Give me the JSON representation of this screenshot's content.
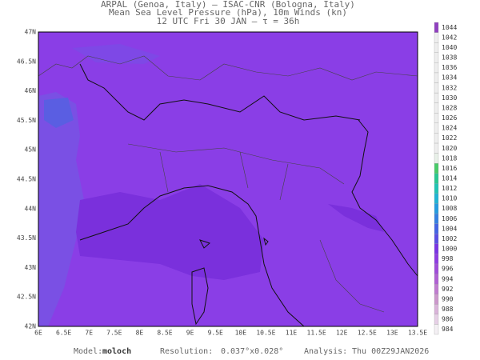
{
  "header": {
    "lines": [
      "ARPAL (Genoa, Italy)  –  ISAC-CNR (Bologna, Italy)",
      "Mean Sea Level Pressure (hPa), 10m Winds (kn)",
      "12 UTC Fri 30 JAN  –  τ = 36h"
    ]
  },
  "map": {
    "lon_labels": [
      "6E",
      "6.5E",
      "7E",
      "7.5E",
      "8E",
      "8.5E",
      "9E",
      "9.5E",
      "10E",
      "10.5E",
      "11E",
      "11.5E",
      "12E",
      "12.5E",
      "13E",
      "13.5E"
    ],
    "lat_labels": [
      "47N",
      "46.5N",
      "46N",
      "45.5N",
      "45N",
      "44.5N",
      "44N",
      "43.5N",
      "43N",
      "42.5N",
      "42N"
    ]
  },
  "colorbar": {
    "levels": [
      {
        "value": 984,
        "color": "#f4f0f4"
      },
      {
        "value": 986,
        "color": "#e6d0e6"
      },
      {
        "value": 988,
        "color": "#dab4da"
      },
      {
        "value": 990,
        "color": "#cc98cc"
      },
      {
        "value": 992,
        "color": "#c07cd0"
      },
      {
        "value": 994,
        "color": "#b060d4"
      },
      {
        "value": 996,
        "color": "#a04cda"
      },
      {
        "value": 998,
        "color": "#8e3ce2"
      },
      {
        "value": 1000,
        "color": "#7a34e4"
      },
      {
        "value": 1002,
        "color": "#5a4ee4"
      },
      {
        "value": 1004,
        "color": "#4464e4"
      },
      {
        "value": 1006,
        "color": "#3480e2"
      },
      {
        "value": 1008,
        "color": "#249ce0"
      },
      {
        "value": 1010,
        "color": "#20b4d4"
      },
      {
        "value": 1012,
        "color": "#20c4b4"
      },
      {
        "value": 1014,
        "color": "#28c890"
      },
      {
        "value": 1016,
        "color": "#48cc68"
      },
      {
        "value": 1018,
        "color": "#e8f0e8"
      },
      {
        "value": 1020,
        "color": "#eeeeee"
      },
      {
        "value": 1022,
        "color": "#eeeeee"
      },
      {
        "value": 1024,
        "color": "#eeeeee"
      },
      {
        "value": 1026,
        "color": "#eeeeee"
      },
      {
        "value": 1028,
        "color": "#eeeeee"
      },
      {
        "value": 1030,
        "color": "#eeeeee"
      },
      {
        "value": 1032,
        "color": "#eeeeee"
      },
      {
        "value": 1034,
        "color": "#eeeeee"
      },
      {
        "value": 1036,
        "color": "#eeeeee"
      },
      {
        "value": 1038,
        "color": "#eeeeee"
      },
      {
        "value": 1040,
        "color": "#eeeeee"
      },
      {
        "value": 1042,
        "color": "#eeeeee"
      },
      {
        "value": 1044,
        "color": "#9040c0"
      }
    ]
  },
  "footer": {
    "model_label": "Model:",
    "model": "moloch",
    "resolution_label": "Resolution:",
    "resolution": "0.037°x0.028°",
    "analysis_label": "Analysis:",
    "analysis": "Thu 00Z29JAN2026"
  }
}
